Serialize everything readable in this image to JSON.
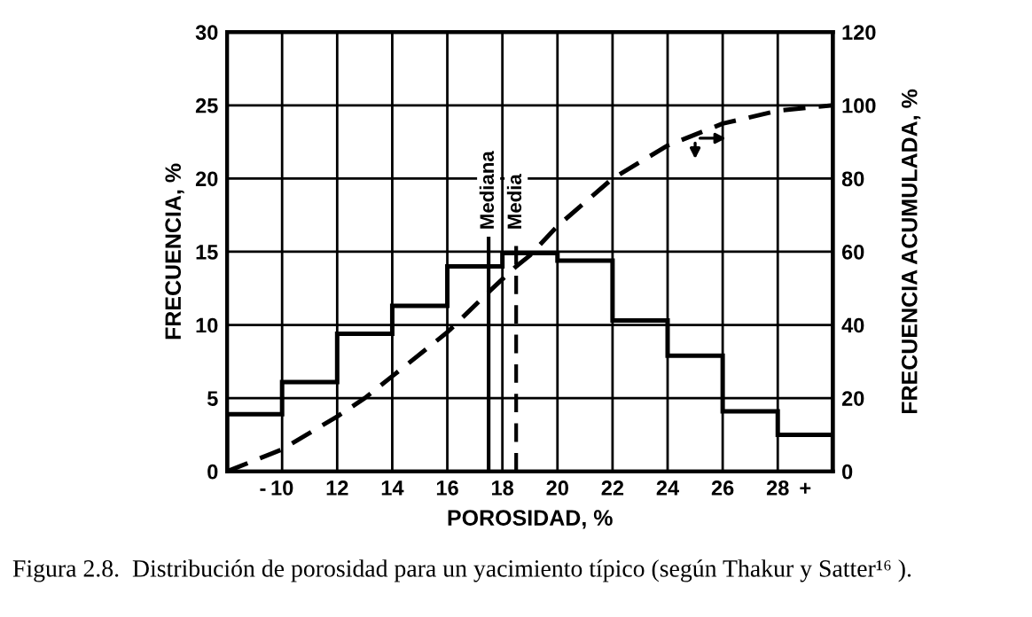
{
  "chart_data": {
    "type": "histogram",
    "xlabel": "POROSIDAD, %",
    "ylabel": "FRECUENCIA, %",
    "y2label": "FRECUENCIA ACUMULADA, %",
    "bins": [
      8,
      10,
      12,
      14,
      16,
      18,
      20,
      22,
      24,
      26,
      28,
      30
    ],
    "values": [
      3.9,
      6.1,
      9.4,
      11.3,
      14.0,
      14.9,
      14.4,
      10.3,
      7.9,
      4.1,
      2.5
    ],
    "color": "#000000",
    "xlim": [
      8,
      30
    ],
    "xticks": [
      {
        "value": 9.3,
        "label": "-"
      },
      10,
      12,
      14,
      16,
      18,
      20,
      22,
      24,
      26,
      28,
      {
        "value": 29,
        "label": "+"
      }
    ],
    "ylim": [
      0,
      30
    ],
    "yticks": [
      0,
      5,
      10,
      15,
      20,
      25,
      30
    ],
    "y2lim": [
      0,
      120
    ],
    "y2ticks": [
      0,
      20,
      40,
      60,
      80,
      100,
      120
    ],
    "grid": true,
    "series": [
      {
        "type": "line",
        "axis": "y2",
        "color": "#000000",
        "line_style": "dashed",
        "x": [
          8,
          10,
          12,
          13,
          14,
          16,
          17.5,
          18.5,
          19,
          20,
          22,
          24,
          26,
          28,
          30
        ],
        "values": [
          0,
          6,
          15,
          20,
          26,
          38,
          49,
          56,
          59,
          67,
          80,
          89,
          95,
          98.5,
          100
        ]
      }
    ],
    "ref_lines": [
      {
        "axis": "x",
        "value": 17.5,
        "label": "Mediana",
        "line_style": "solid",
        "color": "#000000"
      },
      {
        "axis": "x",
        "value": 18.5,
        "label": "Media",
        "line_style": "dashed",
        "color": "#000000"
      }
    ],
    "annotations": [
      "Figura 2.8.  Distribución de porosidad para un yacimiento típico (según Thakur y Satter¹⁶ )."
    ]
  }
}
